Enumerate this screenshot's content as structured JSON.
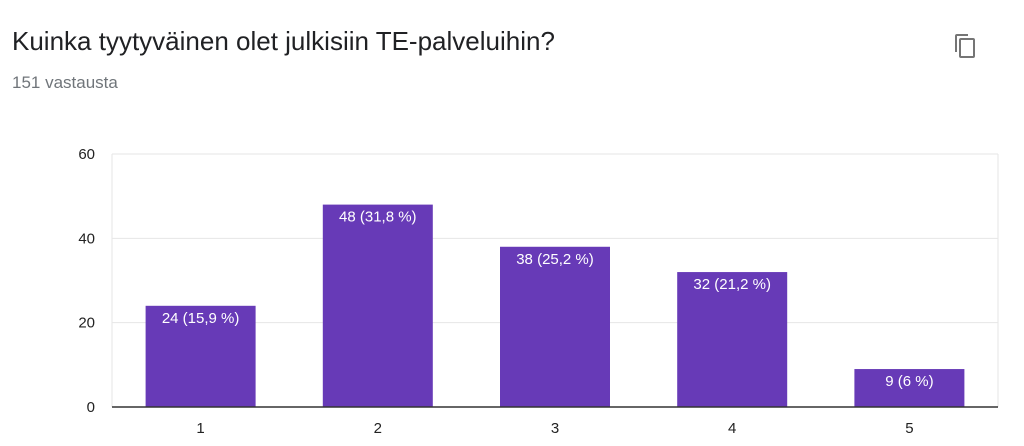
{
  "header": {
    "title": "Kuinka tyytyväinen olet julkisiin TE-palveluihin?",
    "response_count": "151 vastausta"
  },
  "icons": {
    "copy": "copy-icon"
  },
  "colors": {
    "bar": "#673ab7",
    "grid": "#e6e6e6",
    "axis": "#333333"
  },
  "chart_data": {
    "type": "bar",
    "categories": [
      "1",
      "2",
      "3",
      "4",
      "5"
    ],
    "values": [
      24,
      48,
      38,
      32,
      9
    ],
    "data_labels": [
      "24 (15,9 %)",
      "48 (31,8 %)",
      "38 (25,2 %)",
      "32 (21,2 %)",
      "9 (6 %)"
    ],
    "ylim": [
      0,
      60
    ],
    "yticks": [
      "0",
      "20",
      "40",
      "60"
    ],
    "grid": true
  }
}
